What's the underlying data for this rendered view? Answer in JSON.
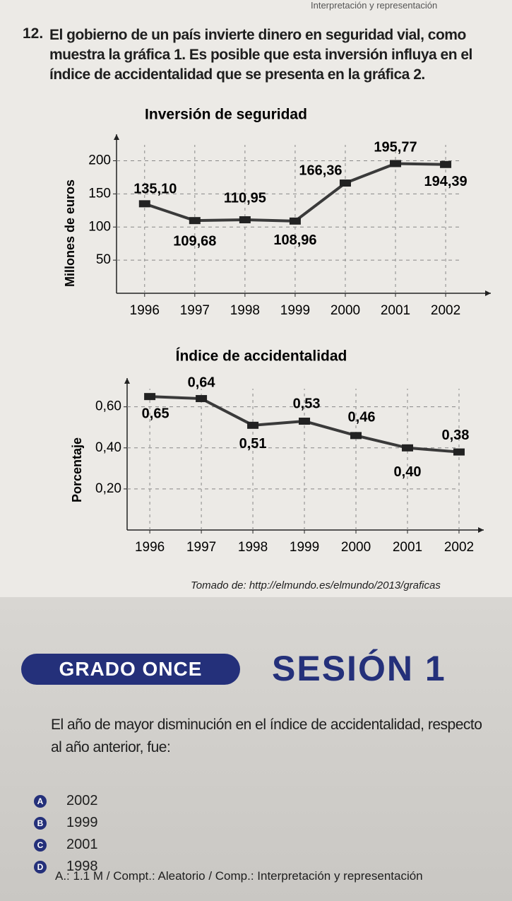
{
  "header": "Interpretación y representación",
  "question_12": {
    "number": "12.",
    "text": "El gobierno de un país invierte dinero en seguridad vial, como muestra la gráfica 1. Es posible que esta inversión influya en el índice de accidentalidad que se presenta en la gráfica 2."
  },
  "chart_data": [
    {
      "type": "line",
      "title": "Inversión de seguridad",
      "y_label": "Millones de euros",
      "x": [
        1996,
        1997,
        1998,
        1999,
        2000,
        2001,
        2002
      ],
      "xlim": [
        1995.44,
        2002.9
      ],
      "values": [
        135.1,
        109.68,
        110.95,
        108.96,
        166.36,
        195.77,
        194.39
      ],
      "value_labels": [
        "135,10",
        "109,68",
        "110,95",
        "108,96",
        "166,36",
        "195,77",
        "194,39"
      ],
      "ylim": [
        0,
        240
      ],
      "yticks": [
        50,
        100,
        150,
        200
      ],
      "grid": true,
      "color": "#3a3a3a"
    },
    {
      "type": "line",
      "title": "Índice de accidentalidad",
      "y_label": "Porcentaje",
      "x": [
        1996,
        1997,
        1998,
        1999,
        2000,
        2001,
        2002
      ],
      "xlim": [
        1995.56,
        2002.48
      ],
      "values": [
        0.65,
        0.64,
        0.51,
        0.53,
        0.46,
        0.4,
        0.38
      ],
      "value_labels": [
        "0,65",
        "0,64",
        "0,51",
        "0,53",
        "0,46",
        "0,40",
        "0,38"
      ],
      "ylim": [
        0,
        0.74
      ],
      "yticks": [
        {
          "value": 0.2,
          "label": "0,20"
        },
        {
          "value": 0.4,
          "label": "0,40"
        },
        {
          "value": 0.6,
          "label": "0,60"
        }
      ],
      "grid": true,
      "color": "#3a3a3a"
    }
  ],
  "source": "Tomado de: http://elmundo.es/elmundo/2013/graficas",
  "badge": "GRADO ONCE",
  "session": "SESIÓN 1",
  "question": "El año de mayor disminución en el índice de accidentalidad, respecto al año anterior, fue:",
  "options": [
    {
      "letter": "A",
      "text": "2002"
    },
    {
      "letter": "B",
      "text": "1999"
    },
    {
      "letter": "C",
      "text": "2001"
    },
    {
      "letter": "D",
      "text": "1998"
    }
  ],
  "footer": "A.: 1.1 M / Compt.: Aleatorio / Comp.: Interpretación y representación"
}
